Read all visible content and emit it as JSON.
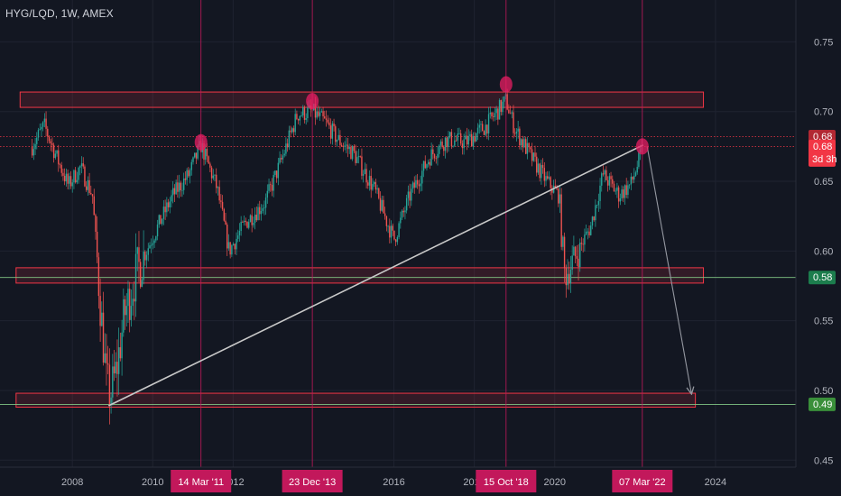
{
  "header": {
    "symbol": "HYG/LQD, 1W, AMEX"
  },
  "chart_data": {
    "type": "candlestick",
    "ylim": [
      0.445,
      0.78
    ],
    "x_range": [
      2006.2,
      2026.0
    ],
    "y_ticks": [
      0.45,
      0.5,
      0.55,
      0.6,
      0.65,
      0.7,
      0.75
    ],
    "y_tick_labels": [
      "0.45",
      "0.50",
      "0.55",
      "0.60",
      "0.65",
      "0.70",
      "0.75"
    ],
    "x_ticks": [
      2008,
      2010,
      2012,
      2016,
      2018,
      2020,
      2024
    ],
    "x_tick_labels": [
      "2008",
      "2010",
      "2012",
      "2016",
      "2018",
      "2020",
      "2024"
    ],
    "date_tags": [
      {
        "label": "14 Mar '11",
        "x": 2011.2
      },
      {
        "label": "23 Dec '13",
        "x": 2013.97
      },
      {
        "label": "15 Oct '18",
        "x": 2018.79
      },
      {
        "label": "07 Mar '22",
        "x": 2022.18
      }
    ],
    "price_tags": [
      {
        "label": "0.68",
        "y": 0.682,
        "color": "#b22833"
      },
      {
        "label": "0.68",
        "y": 0.675,
        "color": "#f23645",
        "sub": "3d 3h"
      },
      {
        "label": "0.58",
        "y": 0.581,
        "color": "#1c7d4d"
      },
      {
        "label": "0.49",
        "y": 0.49,
        "color": "#3a8f3a"
      }
    ],
    "zones": [
      {
        "x1": 2006.7,
        "x2": 2023.7,
        "y1": 0.703,
        "y2": 0.714
      },
      {
        "x1": 2006.6,
        "x2": 2023.7,
        "y1": 0.577,
        "y2": 0.588
      },
      {
        "x1": 2006.6,
        "x2": 2023.5,
        "y1": 0.488,
        "y2": 0.498
      }
    ],
    "trendline": {
      "x1": 2008.9,
      "y1": 0.489,
      "x2": 2022.2,
      "y2": 0.676
    },
    "projection_arrow": {
      "x1": 2022.3,
      "y1": 0.675,
      "x2": 2023.4,
      "y2": 0.498
    },
    "peaks": [
      {
        "x": 2011.2,
        "y": 0.678
      },
      {
        "x": 2013.97,
        "y": 0.7075
      },
      {
        "x": 2018.79,
        "y": 0.7195
      },
      {
        "x": 2022.18,
        "y": 0.675
      }
    ],
    "horizontal_lines": [
      0.581,
      0.49
    ],
    "dotted_lines": [
      0.682,
      0.675
    ],
    "price_path": [
      [
        2007.0,
        0.675
      ],
      [
        2007.3,
        0.69
      ],
      [
        2007.6,
        0.668
      ],
      [
        2007.9,
        0.647
      ],
      [
        2008.2,
        0.66
      ],
      [
        2008.5,
        0.64
      ],
      [
        2008.7,
        0.56
      ],
      [
        2008.85,
        0.505
      ],
      [
        2008.95,
        0.497
      ],
      [
        2009.1,
        0.515
      ],
      [
        2009.3,
        0.555
      ],
      [
        2009.6,
        0.585
      ],
      [
        2010.0,
        0.61
      ],
      [
        2010.5,
        0.64
      ],
      [
        2010.9,
        0.655
      ],
      [
        2011.2,
        0.676
      ],
      [
        2011.6,
        0.645
      ],
      [
        2011.9,
        0.6
      ],
      [
        2012.3,
        0.62
      ],
      [
        2012.8,
        0.635
      ],
      [
        2013.2,
        0.665
      ],
      [
        2013.6,
        0.698
      ],
      [
        2013.97,
        0.7
      ],
      [
        2014.3,
        0.692
      ],
      [
        2014.6,
        0.68
      ],
      [
        2015.0,
        0.67
      ],
      [
        2015.5,
        0.645
      ],
      [
        2016.0,
        0.608
      ],
      [
        2016.4,
        0.64
      ],
      [
        2016.9,
        0.668
      ],
      [
        2017.3,
        0.68
      ],
      [
        2017.8,
        0.678
      ],
      [
        2018.3,
        0.69
      ],
      [
        2018.79,
        0.708
      ],
      [
        2019.0,
        0.688
      ],
      [
        2019.4,
        0.668
      ],
      [
        2019.8,
        0.65
      ],
      [
        2020.1,
        0.64
      ],
      [
        2020.25,
        0.582
      ],
      [
        2020.5,
        0.595
      ],
      [
        2020.9,
        0.618
      ],
      [
        2021.2,
        0.655
      ],
      [
        2021.6,
        0.64
      ],
      [
        2021.9,
        0.648
      ],
      [
        2022.18,
        0.672
      ]
    ]
  }
}
